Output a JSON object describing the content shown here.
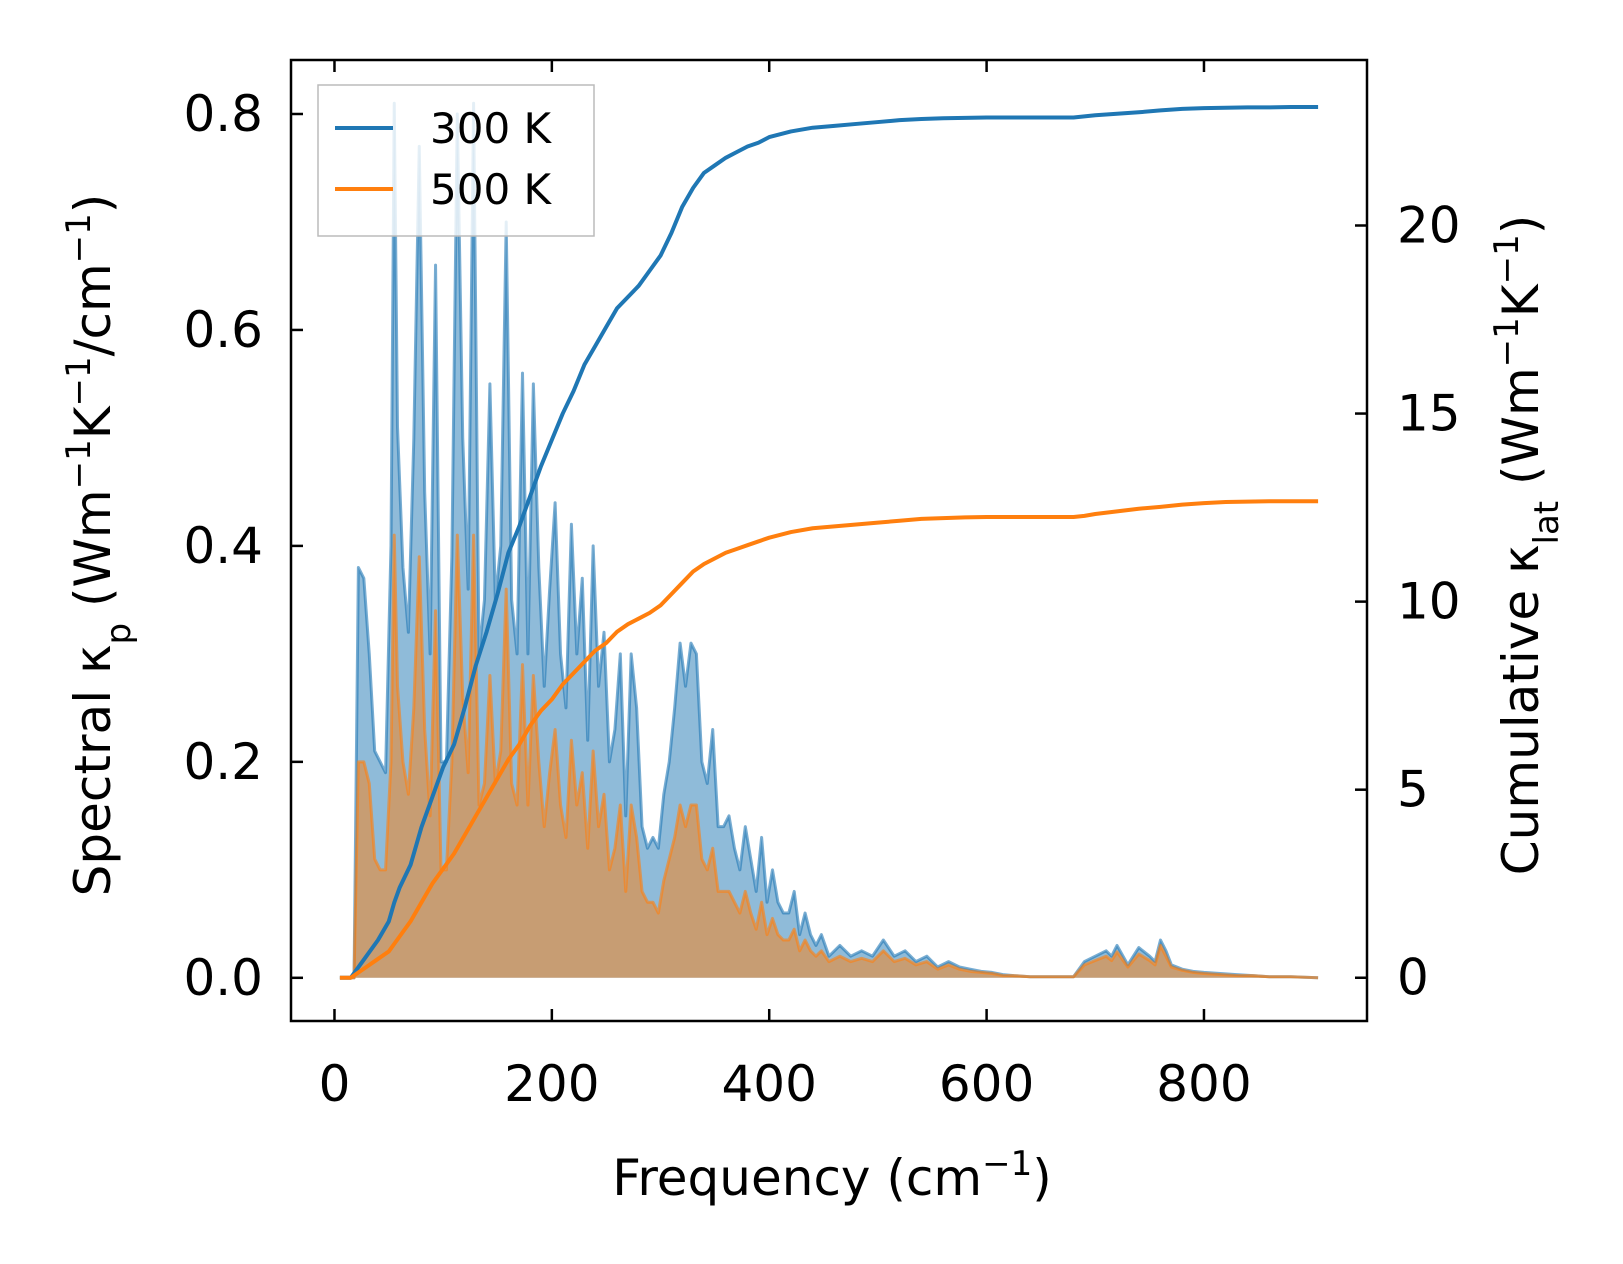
{
  "chart_data": {
    "type": "area+line",
    "title": "",
    "xlabel_main": "Frequency (cm",
    "xlabel_sup": "−1",
    "xlabel_tail": ")",
    "ylabel_left_main": "Spectral κ",
    "ylabel_left_sub": "p",
    "ylabel_left_units": " (Wm",
    "ylabel_left_units_sup1": "−1",
    "ylabel_left_units_k": "K",
    "ylabel_left_units_sup2": "−1",
    "ylabel_left_units_tail": "/cm",
    "ylabel_left_units_sup3": "−1",
    "ylabel_left_units_close": ")",
    "ylabel_right_main": "Cumulative κ",
    "ylabel_right_sub": "lat",
    "ylabel_right_units": " (Wm",
    "ylabel_right_units_sup1": "−1",
    "ylabel_right_units_k": "K",
    "ylabel_right_units_sup2": "−1",
    "ylabel_right_units_close": ")",
    "xlim": [
      -40,
      950
    ],
    "ylim_left": [
      -0.04,
      0.85
    ],
    "ylim_right": [
      -1.15,
      24.4
    ],
    "xticks": [
      0,
      200,
      400,
      600,
      800
    ],
    "xtick_labels": [
      "0",
      "200",
      "400",
      "600",
      "800"
    ],
    "yticks_left": [
      0.0,
      0.2,
      0.4,
      0.6,
      0.8
    ],
    "ytick_labels_left": [
      "0.0",
      "0.2",
      "0.4",
      "0.6",
      "0.8"
    ],
    "yticks_right": [
      0,
      5,
      10,
      15,
      20
    ],
    "ytick_labels_right": [
      "0",
      "5",
      "10",
      "15",
      "20"
    ],
    "legend_position": "top-left",
    "legend": [
      {
        "label": "300 K",
        "color": "#1f77b4"
      },
      {
        "label": "500 K",
        "color": "#ff7f0e"
      }
    ],
    "spectral_x": [
      5,
      18,
      22,
      27,
      32,
      37,
      42,
      47,
      52,
      55,
      58,
      63,
      68,
      73,
      78,
      83,
      88,
      93,
      98,
      103,
      108,
      113,
      118,
      123,
      128,
      133,
      138,
      143,
      148,
      153,
      158,
      163,
      168,
      173,
      178,
      183,
      188,
      193,
      198,
      203,
      208,
      213,
      218,
      223,
      228,
      233,
      238,
      243,
      248,
      253,
      258,
      263,
      268,
      273,
      278,
      283,
      288,
      293,
      298,
      303,
      308,
      313,
      318,
      323,
      328,
      333,
      338,
      343,
      348,
      353,
      358,
      363,
      368,
      373,
      378,
      383,
      388,
      393,
      398,
      403,
      408,
      413,
      418,
      423,
      428,
      433,
      438,
      443,
      448,
      455,
      465,
      475,
      485,
      495,
      505,
      515,
      525,
      535,
      545,
      555,
      565,
      575,
      585,
      595,
      605,
      615,
      625,
      640,
      660,
      680,
      690,
      700,
      710,
      715,
      720,
      730,
      740,
      750,
      755,
      760,
      765,
      770,
      780,
      790,
      800,
      815,
      830,
      845,
      860,
      880,
      905
    ],
    "series": [
      {
        "name": "300 K",
        "color": "#1f77b4",
        "spectral": [
          0,
          0,
          0.38,
          0.37,
          0.3,
          0.21,
          0.2,
          0.19,
          0.4,
          0.81,
          0.51,
          0.38,
          0.32,
          0.5,
          0.77,
          0.45,
          0.3,
          0.66,
          0.2,
          0.2,
          0.39,
          0.8,
          0.5,
          0.36,
          0.81,
          0.3,
          0.35,
          0.55,
          0.35,
          0.4,
          0.7,
          0.35,
          0.3,
          0.56,
          0.3,
          0.55,
          0.38,
          0.27,
          0.36,
          0.44,
          0.3,
          0.25,
          0.42,
          0.3,
          0.37,
          0.22,
          0.4,
          0.27,
          0.32,
          0.2,
          0.23,
          0.3,
          0.15,
          0.3,
          0.25,
          0.14,
          0.12,
          0.13,
          0.12,
          0.17,
          0.2,
          0.25,
          0.31,
          0.27,
          0.31,
          0.3,
          0.2,
          0.18,
          0.23,
          0.14,
          0.14,
          0.15,
          0.12,
          0.1,
          0.14,
          0.11,
          0.08,
          0.13,
          0.07,
          0.1,
          0.07,
          0.06,
          0.06,
          0.08,
          0.04,
          0.06,
          0.04,
          0.03,
          0.04,
          0.02,
          0.03,
          0.02,
          0.025,
          0.02,
          0.035,
          0.02,
          0.025,
          0.015,
          0.02,
          0.01,
          0.015,
          0.01,
          0.008,
          0.006,
          0.005,
          0.003,
          0.002,
          0.001,
          0.001,
          0.001,
          0.015,
          0.02,
          0.025,
          0.02,
          0.03,
          0.012,
          0.028,
          0.02,
          0.015,
          0.035,
          0.025,
          0.012,
          0.008,
          0.006,
          0.005,
          0.004,
          0.003,
          0.002,
          0.001,
          0.001,
          0.0
        ],
        "cumulative_x": [
          5,
          15,
          20,
          30,
          40,
          50,
          55,
          60,
          70,
          80,
          90,
          100,
          110,
          120,
          130,
          140,
          150,
          160,
          170,
          180,
          190,
          200,
          210,
          220,
          230,
          240,
          250,
          260,
          270,
          280,
          290,
          300,
          310,
          320,
          330,
          340,
          350,
          360,
          370,
          380,
          390,
          400,
          420,
          440,
          460,
          480,
          500,
          520,
          540,
          560,
          580,
          600,
          620,
          640,
          660,
          680,
          690,
          700,
          720,
          740,
          760,
          780,
          800,
          820,
          840,
          860,
          880,
          905
        ],
        "cumulative": [
          0,
          0,
          0.2,
          0.6,
          1.0,
          1.5,
          2.0,
          2.4,
          3.0,
          4.0,
          4.8,
          5.6,
          6.2,
          7.2,
          8.3,
          9.2,
          10.2,
          11.3,
          12.0,
          12.8,
          13.6,
          14.3,
          15.0,
          15.6,
          16.3,
          16.8,
          17.3,
          17.8,
          18.1,
          18.4,
          18.8,
          19.2,
          19.8,
          20.5,
          21.0,
          21.4,
          21.6,
          21.8,
          21.95,
          22.1,
          22.2,
          22.35,
          22.5,
          22.6,
          22.65,
          22.7,
          22.75,
          22.8,
          22.83,
          22.85,
          22.86,
          22.87,
          22.87,
          22.87,
          22.87,
          22.87,
          22.9,
          22.93,
          22.97,
          23.01,
          23.06,
          23.1,
          23.12,
          23.13,
          23.14,
          23.14,
          23.15,
          23.15
        ]
      },
      {
        "name": "500 K",
        "color": "#ff7f0e",
        "spectral": [
          0,
          0,
          0.2,
          0.2,
          0.18,
          0.11,
          0.1,
          0.1,
          0.2,
          0.41,
          0.27,
          0.2,
          0.17,
          0.25,
          0.39,
          0.23,
          0.15,
          0.34,
          0.1,
          0.1,
          0.2,
          0.41,
          0.26,
          0.19,
          0.41,
          0.16,
          0.18,
          0.28,
          0.18,
          0.21,
          0.36,
          0.18,
          0.16,
          0.29,
          0.16,
          0.28,
          0.2,
          0.14,
          0.19,
          0.23,
          0.16,
          0.13,
          0.22,
          0.16,
          0.19,
          0.12,
          0.21,
          0.14,
          0.17,
          0.1,
          0.12,
          0.16,
          0.08,
          0.16,
          0.13,
          0.08,
          0.07,
          0.07,
          0.06,
          0.09,
          0.11,
          0.13,
          0.16,
          0.14,
          0.16,
          0.16,
          0.11,
          0.1,
          0.12,
          0.08,
          0.08,
          0.08,
          0.07,
          0.06,
          0.08,
          0.06,
          0.045,
          0.07,
          0.04,
          0.055,
          0.04,
          0.035,
          0.035,
          0.045,
          0.025,
          0.035,
          0.025,
          0.02,
          0.025,
          0.015,
          0.02,
          0.015,
          0.018,
          0.015,
          0.025,
          0.015,
          0.018,
          0.012,
          0.015,
          0.008,
          0.012,
          0.008,
          0.006,
          0.005,
          0.004,
          0.002,
          0.002,
          0.001,
          0.001,
          0.001,
          0.012,
          0.016,
          0.02,
          0.016,
          0.024,
          0.01,
          0.022,
          0.016,
          0.012,
          0.03,
          0.02,
          0.01,
          0.007,
          0.005,
          0.004,
          0.003,
          0.002,
          0.002,
          0.001,
          0.001,
          0.0
        ],
        "cumulative_x": [
          5,
          15,
          20,
          30,
          40,
          50,
          55,
          60,
          70,
          80,
          90,
          100,
          110,
          120,
          130,
          140,
          150,
          160,
          170,
          180,
          190,
          200,
          210,
          220,
          230,
          240,
          250,
          260,
          270,
          280,
          290,
          300,
          310,
          320,
          330,
          340,
          350,
          360,
          370,
          380,
          390,
          400,
          420,
          440,
          460,
          480,
          500,
          520,
          540,
          560,
          580,
          600,
          620,
          640,
          660,
          680,
          690,
          700,
          720,
          740,
          760,
          780,
          800,
          820,
          840,
          860,
          880,
          905
        ],
        "cumulative": [
          0,
          0,
          0.1,
          0.3,
          0.5,
          0.7,
          0.9,
          1.1,
          1.5,
          2.0,
          2.5,
          2.9,
          3.3,
          3.8,
          4.3,
          4.8,
          5.3,
          5.8,
          6.2,
          6.7,
          7.1,
          7.4,
          7.8,
          8.1,
          8.4,
          8.7,
          8.9,
          9.2,
          9.4,
          9.55,
          9.7,
          9.9,
          10.2,
          10.5,
          10.8,
          11.0,
          11.15,
          11.3,
          11.4,
          11.5,
          11.6,
          11.7,
          11.85,
          11.95,
          12.0,
          12.05,
          12.1,
          12.15,
          12.2,
          12.22,
          12.24,
          12.25,
          12.25,
          12.25,
          12.25,
          12.25,
          12.28,
          12.33,
          12.4,
          12.47,
          12.52,
          12.58,
          12.62,
          12.65,
          12.66,
          12.67,
          12.67,
          12.67
        ]
      }
    ]
  }
}
